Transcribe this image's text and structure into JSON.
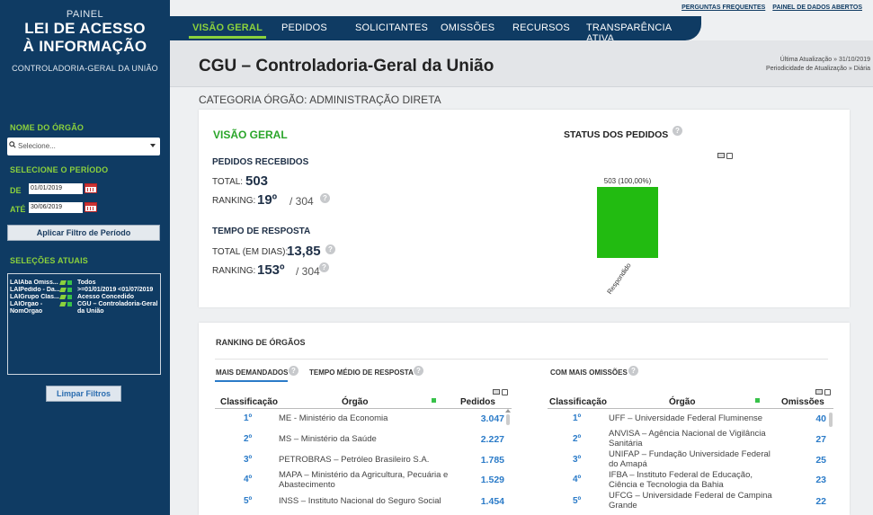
{
  "sidebar": {
    "small_title": "PAINEL",
    "title_line1": "LEI DE ACESSO",
    "title_line2": "À INFORMAÇÃO",
    "subtitle": "CONTROLADORIA-GERAL DA UNIÃO",
    "org_label": "NOME DO ÓRGÃO",
    "org_placeholder": "Selecione...",
    "period_label": "SELECIONE O PERÍODO",
    "from_label": "DE",
    "from_value": "01/01/2019",
    "to_label": "ATÉ",
    "to_value": "30/06/2019",
    "apply_button": "Aplicar Filtro de Período",
    "selections_label": "SELEÇÕES ATUAIS",
    "selections": [
      {
        "key": "LAIAba Omiss...",
        "value": "Todos"
      },
      {
        "key": "LAIPedido - Da...",
        "value": ">=01/01/2019 <01/07/2019"
      },
      {
        "key": "LAIGrupo Clas...",
        "value": "Acesso Concedido"
      },
      {
        "key": "LAIOrgao - NomOrgao",
        "value": "CGU – Controladoria-Geral da União"
      }
    ],
    "clear_button": "Limpar Filtros"
  },
  "nav": {
    "tabs": [
      "VISÃO GERAL",
      "PEDIDOS",
      "SOLICITANTES",
      "OMISSÕES",
      "RECURSOS",
      "TRANSPARÊNCIA ATIVA"
    ],
    "links": [
      "PERGUNTAS FREQUENTES",
      "PAINEL DE DADOS ABERTOS"
    ]
  },
  "header": {
    "title": "CGU – Controladoria-Geral da União",
    "last_update": "Última Atualização » 31/10/2019",
    "frequency": "Periodicidade de Atualização » Diária",
    "category": "CATEGORIA ÓRGÃO: ADMINISTRAÇÃO DIRETA"
  },
  "overview": {
    "title": "VISÃO GERAL",
    "received_label": "PEDIDOS RECEBIDOS",
    "total_label": "TOTAL:",
    "total_value": "503",
    "ranking_label": "RANKING:",
    "ranking_value": "19º",
    "ranking_of": "/ 304",
    "response_label": "TEMPO DE RESPOSTA",
    "days_label": "TOTAL (EM DIAS):",
    "days_value": "13,85",
    "ranking2_value": "153º",
    "ranking2_of": "/ 304",
    "help_icon": "?"
  },
  "chart_data": {
    "type": "bar",
    "title": "STATUS DOS PEDIDOS",
    "categories": [
      "Respondido"
    ],
    "values": [
      503
    ],
    "data_labels": [
      "503 (100,00%)"
    ],
    "ylim": [
      0,
      503
    ],
    "bar_color": "#22bb11",
    "grid": false
  },
  "ranking": {
    "title": "RANKING DE ÓRGÃOS",
    "tab_left_1": "MAIS DEMANDADOS",
    "tab_left_2": "TEMPO MÉDIO DE RESPOSTA",
    "tab_right": "COM MAIS OMISSÕES",
    "col_class": "Classificação",
    "col_org": "Órgão",
    "col_pedidos": "Pedidos",
    "col_omissoes": "Omissões",
    "left_rows": [
      {
        "rank": "1º",
        "org": "ME - Ministério da Economia",
        "value": "3.047"
      },
      {
        "rank": "2º",
        "org": "MS – Ministério da Saúde",
        "value": "2.227"
      },
      {
        "rank": "3º",
        "org": "PETROBRAS – Petróleo Brasileiro S.A.",
        "value": "1.785"
      },
      {
        "rank": "4º",
        "org": "MAPA – Ministério da Agricultura, Pecuária e Abastecimento",
        "value": "1.529"
      },
      {
        "rank": "5º",
        "org": "INSS – Instituto Nacional do Seguro Social",
        "value": "1.454"
      }
    ],
    "right_rows": [
      {
        "rank": "1º",
        "org": "UFF – Universidade Federal Fluminense",
        "value": "40"
      },
      {
        "rank": "2º",
        "org": "ANVISA – Agência Nacional de Vigilância Sanitária",
        "value": "27"
      },
      {
        "rank": "3º",
        "org": "UNIFAP – Fundação Universidade Federal do Amapá",
        "value": "25"
      },
      {
        "rank": "4º",
        "org": "IFBA – Instituto Federal de Educação, Ciência e Tecnologia da Bahia",
        "value": "23"
      },
      {
        "rank": "5º",
        "org": "UFCG – Universidade Federal de Campina Grande",
        "value": "22"
      }
    ]
  }
}
